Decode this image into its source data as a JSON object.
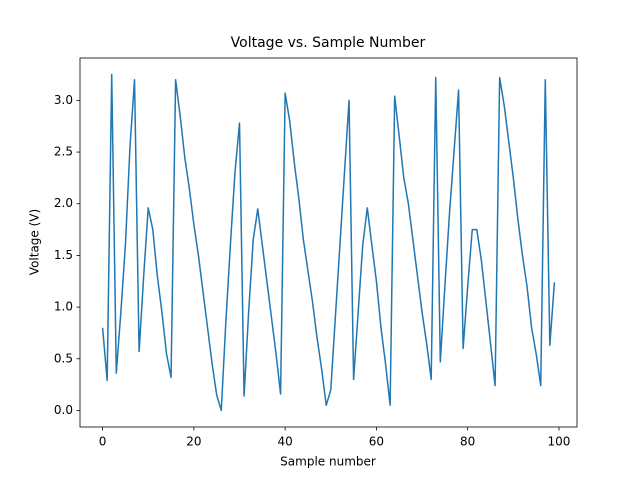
{
  "chart_data": {
    "type": "line",
    "title": "Voltage vs. Sample Number",
    "x_label": "Sample number",
    "y_label": "Voltage (V)",
    "x": [
      0,
      1,
      2,
      3,
      4,
      5,
      6,
      7,
      8,
      9,
      10,
      11,
      12,
      13,
      14,
      15,
      16,
      17,
      18,
      19,
      20,
      21,
      22,
      23,
      24,
      25,
      26,
      27,
      28,
      29,
      30,
      31,
      32,
      33,
      34,
      35,
      36,
      37,
      38,
      39,
      40,
      41,
      42,
      43,
      44,
      45,
      46,
      47,
      48,
      49,
      50,
      51,
      52,
      53,
      54,
      55,
      56,
      57,
      58,
      59,
      60,
      61,
      62,
      63,
      64,
      65,
      66,
      67,
      68,
      69,
      70,
      71,
      72,
      73,
      74,
      75,
      76,
      77,
      78,
      79,
      80,
      81,
      82,
      83,
      84,
      85,
      86,
      87,
      88,
      89,
      90,
      91,
      92,
      93,
      94,
      95,
      96,
      97,
      98,
      99
    ],
    "series": [
      {
        "color": "#1f77b4",
        "values": [
          0.8,
          0.29,
          3.25,
          0.36,
          0.95,
          1.6,
          2.55,
          3.2,
          0.57,
          1.3,
          1.96,
          1.75,
          1.3,
          0.95,
          0.55,
          0.32,
          3.2,
          2.85,
          2.45,
          2.15,
          1.8,
          1.5,
          1.15,
          0.8,
          0.45,
          0.15,
          0.0,
          0.85,
          1.6,
          2.3,
          2.78,
          0.14,
          0.95,
          1.65,
          1.95,
          1.6,
          1.25,
          0.9,
          0.55,
          0.16,
          3.07,
          2.8,
          2.4,
          2.05,
          1.65,
          1.35,
          1.05,
          0.7,
          0.4,
          0.05,
          0.2,
          0.9,
          1.6,
          2.3,
          3.0,
          0.3,
          0.95,
          1.6,
          1.96,
          1.6,
          1.25,
          0.8,
          0.45,
          0.05,
          3.04,
          2.65,
          2.25,
          2.0,
          1.65,
          1.3,
          0.95,
          0.65,
          0.3,
          3.22,
          0.47,
          1.2,
          1.9,
          2.5,
          3.1,
          0.6,
          1.2,
          1.75,
          1.75,
          1.45,
          1.05,
          0.65,
          0.24,
          3.22,
          2.95,
          2.6,
          2.25,
          1.85,
          1.5,
          1.2,
          0.8,
          0.55,
          0.24,
          3.2,
          0.63,
          1.24
        ]
      }
    ],
    "xlim": [
      -4.95,
      103.95
    ],
    "ylim": [
      -0.16,
      3.41
    ],
    "xticks": [
      0,
      20,
      40,
      60,
      80,
      100
    ],
    "yticks": [
      {
        "value": 0,
        "label": "0.0"
      },
      0.5,
      {
        "value": 1,
        "label": "1.0"
      },
      1.5,
      {
        "value": 2,
        "label": "2.0"
      },
      2.5,
      {
        "value": 3,
        "label": "3.0"
      }
    ]
  }
}
